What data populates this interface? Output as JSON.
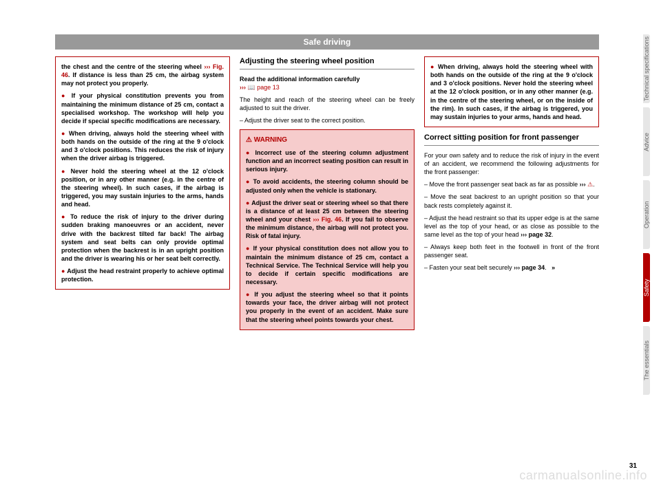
{
  "header": "Safe driving",
  "page_number": "31",
  "watermark": "carmanualsonline.info",
  "colors": {
    "accent": "#b30000",
    "header_bg": "#999999",
    "warn_bg": "#f6cccc",
    "tab_bg": "#e6e6e6",
    "text": "#000000",
    "watermark": "#dddddd"
  },
  "tabs": [
    {
      "label": "Technical specifications",
      "active": false
    },
    {
      "label": "Advice",
      "active": false
    },
    {
      "label": "Operation",
      "active": false
    },
    {
      "label": "Safety",
      "active": true
    },
    {
      "label": "The essentials",
      "active": false
    }
  ],
  "col1": {
    "box": {
      "p1a": "the chest and the centre of the steering wheel ",
      "p1ref": "››› Fig. 46",
      "p1b": ". If distance is less than 25 cm, the airbag system may not protect you properly.",
      "b1": "If your physical constitution prevents you from maintaining the minimum distance of 25 cm, contact a specialised workshop. The workshop will help you decide if special specific modifications are necessary.",
      "b2": "When driving, always hold the steering wheel with both hands on the outside of the ring at the 9 o'clock and 3 o'clock positions. This reduces the risk of injury when the driver airbag is triggered.",
      "b3": "Never hold the steering wheel at the 12 o'clock position, or in any other manner (e.g. in the centre of the steering wheel). In such cases, if the airbag is triggered, you may sustain injuries to the arms, hands and head.",
      "b4": "To reduce the risk of injury to the driver during sudden braking manoeuvres or an accident, never drive with the backrest tilted far back! The airbag system and seat belts can only provide optimal protection when the backrest is in an upright position and the driver is wearing his or her seat belt correctly.",
      "b5": "Adjust the head restraint properly to achieve optimal protection."
    }
  },
  "col2": {
    "heading": "Adjusting the steering wheel position",
    "intro_bold": "Read the additional information carefully",
    "intro_ref": "page 13",
    "p1": "The height and reach of the steering wheel can be freely adjusted to suit the driver.",
    "d1": "Adjust the driver seat to the correct position.",
    "warning_label": "WARNING",
    "warn": {
      "b1": "Incorrect use of the steering column adjustment function and an incorrect seating position can result in serious injury.",
      "b2": "To avoid accidents, the steering column should be adjusted only when the vehicle is stationary.",
      "b3a": "Adjust the driver seat or steering wheel so that there is a distance of at least 25 cm between the steering wheel and your chest ",
      "b3ref": "››› Fig. 46",
      "b3b": ". If you fail to observe the minimum distance, the airbag will not protect you. Risk of fatal injury.",
      "b4": "If your physical constitution does not allow you to maintain the minimum distance of 25 cm, contact a Technical Service. The Technical Service will help you to decide if certain specific modifications are necessary.",
      "b5": "If you adjust the steering wheel so that it points towards your face, the driver airbag will not protect you properly in the event of an accident. Make sure that the steering wheel points towards your chest."
    }
  },
  "col3": {
    "top_warn": "When driving, always hold the steering wheel with both hands on the outside of the ring at the 9 o'clock and 3 o'clock positions. Never hold the steering wheel at the 12 o'clock position, or in any other manner (e.g. in the centre of the steering wheel, or on the inside of the rim). In such cases, if the airbag is triggered, you may sustain injuries to your arms, hands and head.",
    "heading": "Correct sitting position for front passenger",
    "p1": "For your own safety and to reduce the risk of injury in the event of an accident, we recommend the following adjustments for the front passenger:",
    "d1a": "Move the front passenger seat back as far as possible ",
    "d1ref": "›››",
    "d2": "Move the seat backrest to an upright position so that your back rests completely against it.",
    "d3a": "Adjust the head restraint so that its upper edge is at the same level as the top of your head, or as close as possible to the same level as the top of your head ",
    "d3ref": "››› page 32",
    "d4": "Always keep both feet in the footwell in front of the front passenger seat.",
    "d5a": "Fasten your seat belt securely ",
    "d5ref": "››› page 34",
    "cont": "»"
  }
}
